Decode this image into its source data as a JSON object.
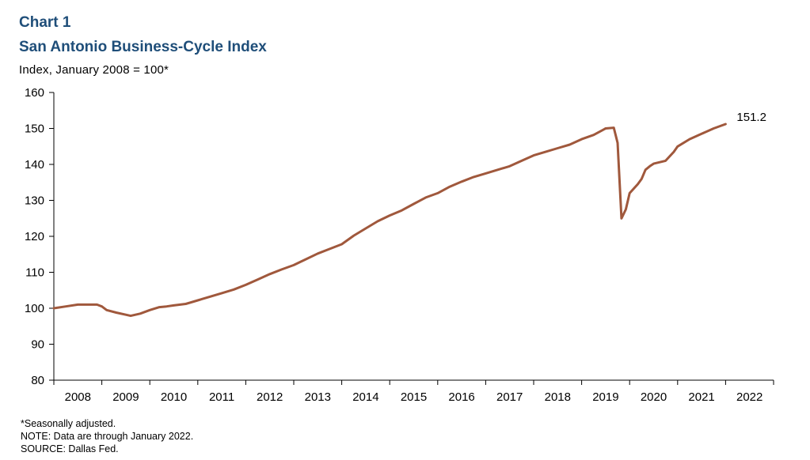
{
  "header": {
    "chart_number": "Chart 1",
    "title": "San Antonio Business-Cycle Index",
    "unit_label": "Index, January 2008 = 100*"
  },
  "footnotes": [
    "*Seasonally adjusted.",
    "NOTE:  Data are through January 2022.",
    "SOURCE:  Dallas Fed."
  ],
  "colors": {
    "line": "#a0583c",
    "label": "#a0583c",
    "title": "#1f4e79"
  },
  "chart_data": {
    "type": "line",
    "title": "San Antonio Business-Cycle Index",
    "ylabel": "Index, January 2008 = 100*",
    "xlabel": "",
    "ylim": [
      80,
      160
    ],
    "yticks": [
      80,
      90,
      100,
      110,
      120,
      130,
      140,
      150,
      160
    ],
    "xlim": [
      2008.0,
      2023.0
    ],
    "xticks": [
      "2008",
      "2009",
      "2010",
      "2011",
      "2012",
      "2013",
      "2014",
      "2015",
      "2016",
      "2017",
      "2018",
      "2019",
      "2020",
      "2021",
      "2022"
    ],
    "grid": false,
    "end_label": "151.2",
    "series": [
      {
        "x": [
          2008.0,
          2008.25,
          2008.5,
          2008.75,
          2008.9,
          2009.0,
          2009.1,
          2009.3,
          2009.5,
          2009.6,
          2009.8,
          2010.0,
          2010.2,
          2010.35,
          2010.5,
          2010.75,
          2011.0,
          2011.25,
          2011.5,
          2011.75,
          2012.0,
          2012.25,
          2012.5,
          2012.75,
          2013.0,
          2013.25,
          2013.5,
          2013.75,
          2014.0,
          2014.25,
          2014.5,
          2014.75,
          2015.0,
          2015.25,
          2015.5,
          2015.75,
          2016.0,
          2016.25,
          2016.5,
          2016.75,
          2017.0,
          2017.25,
          2017.5,
          2017.75,
          2018.0,
          2018.25,
          2018.5,
          2018.75,
          2019.0,
          2019.25,
          2019.5,
          2019.67,
          2019.75,
          2019.83,
          2019.92,
          2020.0,
          2020.17,
          2020.25,
          2020.33,
          2020.42,
          2020.5,
          2020.75,
          2020.92,
          2021.0,
          2021.25,
          2021.5,
          2021.75,
          2022.0
        ],
        "y": [
          100,
          100.5,
          101,
          101,
          101,
          100.5,
          99.5,
          98.8,
          98.2,
          97.9,
          98.5,
          99.5,
          100.3,
          100.5,
          100.8,
          101.2,
          102.2,
          103.2,
          104.2,
          105.2,
          106.5,
          108,
          109.5,
          110.8,
          112,
          113.6,
          115.2,
          116.5,
          117.8,
          120.2,
          122.2,
          124.2,
          125.8,
          127.2,
          129,
          130.8,
          132,
          133.8,
          135.2,
          136.5,
          137.5,
          138.5,
          139.5,
          141,
          142.5,
          143.5,
          144.5,
          145.5,
          147,
          148.2,
          150,
          150.2,
          146,
          125,
          127.5,
          132,
          134.5,
          136,
          138.5,
          139.5,
          140.2,
          141,
          143.5,
          145,
          147,
          148.5,
          150,
          151.2
        ]
      }
    ]
  }
}
